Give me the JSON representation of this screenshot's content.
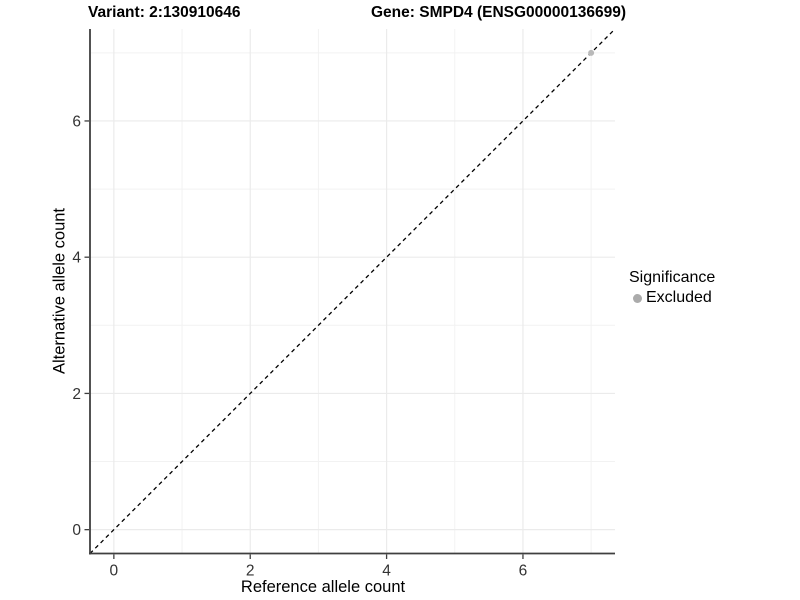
{
  "chart_data": {
    "type": "scatter",
    "titles": {
      "left": "Variant: 2:130910646",
      "right": "Gene: SMPD4 (ENSG00000136699)"
    },
    "xlabel": "Reference allele count",
    "ylabel": "Alternative allele count",
    "xlim": [
      -0.35,
      7.35
    ],
    "ylim": [
      -0.35,
      7.35
    ],
    "xticks": [
      0,
      2,
      4,
      6
    ],
    "yticks": [
      0,
      2,
      4,
      6
    ],
    "minor_xticks": [
      1,
      3,
      5,
      7
    ],
    "minor_yticks": [
      1,
      3,
      5,
      7
    ],
    "grid": true,
    "reference_line": {
      "type": "identity",
      "slope": 1,
      "intercept": 0,
      "style": "dashed",
      "color": "#000000"
    },
    "series": [
      {
        "name": "Excluded",
        "color": "#b9b9b9",
        "points": [
          {
            "x": 7,
            "y": 7
          }
        ]
      }
    ],
    "legend": {
      "title": "Significance",
      "position": "right",
      "items": [
        {
          "label": "Excluded",
          "color": "#ababab"
        }
      ]
    },
    "colors": {
      "background": "#ffffff",
      "grid_major": "#ebebeb",
      "grid_minor": "#f2f2f2",
      "axis": "#3f3f3f",
      "tick_label": "#333333"
    }
  }
}
